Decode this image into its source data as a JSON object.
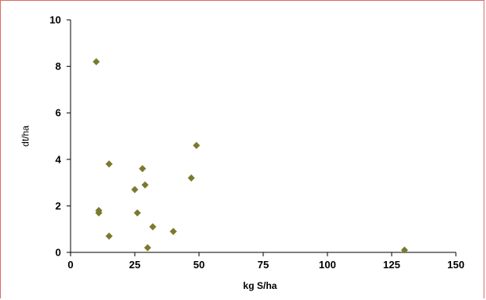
{
  "chart_data": {
    "type": "scatter",
    "title": "",
    "xlabel": "kg S/ha",
    "ylabel": "dt/ha",
    "xlim": [
      0,
      150
    ],
    "ylim": [
      0,
      10
    ],
    "xticks": [
      "0",
      "25",
      "50",
      "75",
      "100",
      "125",
      "150"
    ],
    "yticks": [
      "0",
      "2",
      "4",
      "6",
      "8",
      "10"
    ],
    "grid": false,
    "marker": "diamond",
    "marker_color": "#7a7a2e",
    "frame_color": "#e06a6a",
    "points": [
      {
        "x": 10,
        "y": 8.2
      },
      {
        "x": 11,
        "y": 1.8
      },
      {
        "x": 11,
        "y": 1.7
      },
      {
        "x": 15,
        "y": 3.8
      },
      {
        "x": 15,
        "y": 0.7
      },
      {
        "x": 25,
        "y": 2.7
      },
      {
        "x": 26,
        "y": 1.7
      },
      {
        "x": 28,
        "y": 3.6
      },
      {
        "x": 29,
        "y": 2.9
      },
      {
        "x": 30,
        "y": 0.2
      },
      {
        "x": 32,
        "y": 1.1
      },
      {
        "x": 40,
        "y": 0.9
      },
      {
        "x": 47,
        "y": 3.2
      },
      {
        "x": 49,
        "y": 4.6
      },
      {
        "x": 130,
        "y": 0.1
      }
    ]
  }
}
